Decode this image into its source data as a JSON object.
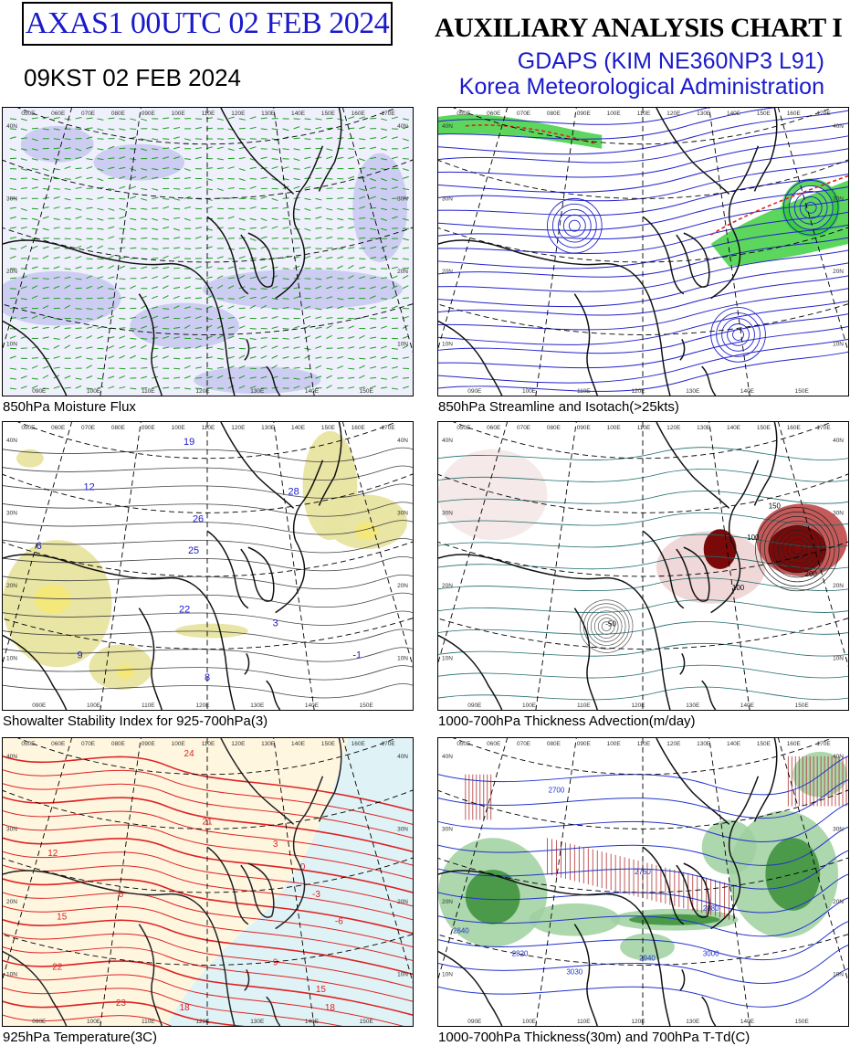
{
  "header": {
    "chart_id": "AXAS1  00UTC 02 FEB 2024",
    "valid_time": "09KST 02 FEB 2024",
    "title": "AUXILIARY ANALYSIS CHART  I",
    "model": "GDAPS (KIM NE360NP3 L91)",
    "agency": "Korea Meteorological Administration"
  },
  "panels": [
    {
      "caption": "850hPa Moisture Flux"
    },
    {
      "caption": "850hPa Streamline and Isotach(>25kts)"
    },
    {
      "caption": "Showalter Stability Index for 925-700hPa(3)"
    },
    {
      "caption": "1000-700hPa Thickness Advection(m/day)"
    },
    {
      "caption": "925hPa Temperature(3C)"
    },
    {
      "caption": "1000-700hPa Thickness(30m) and 700hPa T-Td(C)"
    }
  ],
  "map": {
    "top_lon_labels": [
      "050E",
      "060E",
      "070E",
      "080E",
      "090E",
      "100E",
      "110E",
      "120E",
      "130E",
      "140E",
      "150E",
      "160E",
      "170E"
    ],
    "bottom_lon_labels": [
      "090E",
      "100E",
      "110E",
      "120E",
      "130E",
      "140E",
      "150E"
    ],
    "right_lat_labels": [
      "40N",
      "30N",
      "20N",
      "10N"
    ],
    "left_lat_labels": [
      "40N",
      "30N",
      "20N",
      "10N"
    ]
  },
  "ssi_values": [
    "19",
    "28",
    "26",
    "25",
    "22",
    "12",
    "9",
    "8",
    "3",
    "6",
    "-1"
  ],
  "temp_values": [
    "24",
    "21",
    "12",
    "15",
    "18",
    "6",
    "3",
    "-3",
    "-6",
    "0",
    "9",
    "15",
    "18",
    "22",
    "23"
  ],
  "thick_values": [
    "2700",
    "2760",
    "2820",
    "2880",
    "2940",
    "3000",
    "3030",
    "2640"
  ],
  "adv_values": [
    "-100",
    "100",
    "150",
    "200",
    "-50"
  ],
  "colors": {
    "accent_blue": "#1a1acc",
    "moisture_arrow": "#1e9e1e",
    "moisture_shade": "#c9c9f2",
    "streamline": "#2222cc",
    "isotach_green": "#33cc33",
    "isotach_red": "#dd2222",
    "ssi_shade": "#e8e4a0",
    "temp_line": "#dd2222",
    "temp_cold_bg": "#dff3f7",
    "temp_warm_bg": "#fff6e0",
    "thick_line": "#2233cc",
    "dry_green": "#4a9a4a",
    "hatch_red": "#b03030",
    "adv_darkred": "#7a0a0a"
  }
}
